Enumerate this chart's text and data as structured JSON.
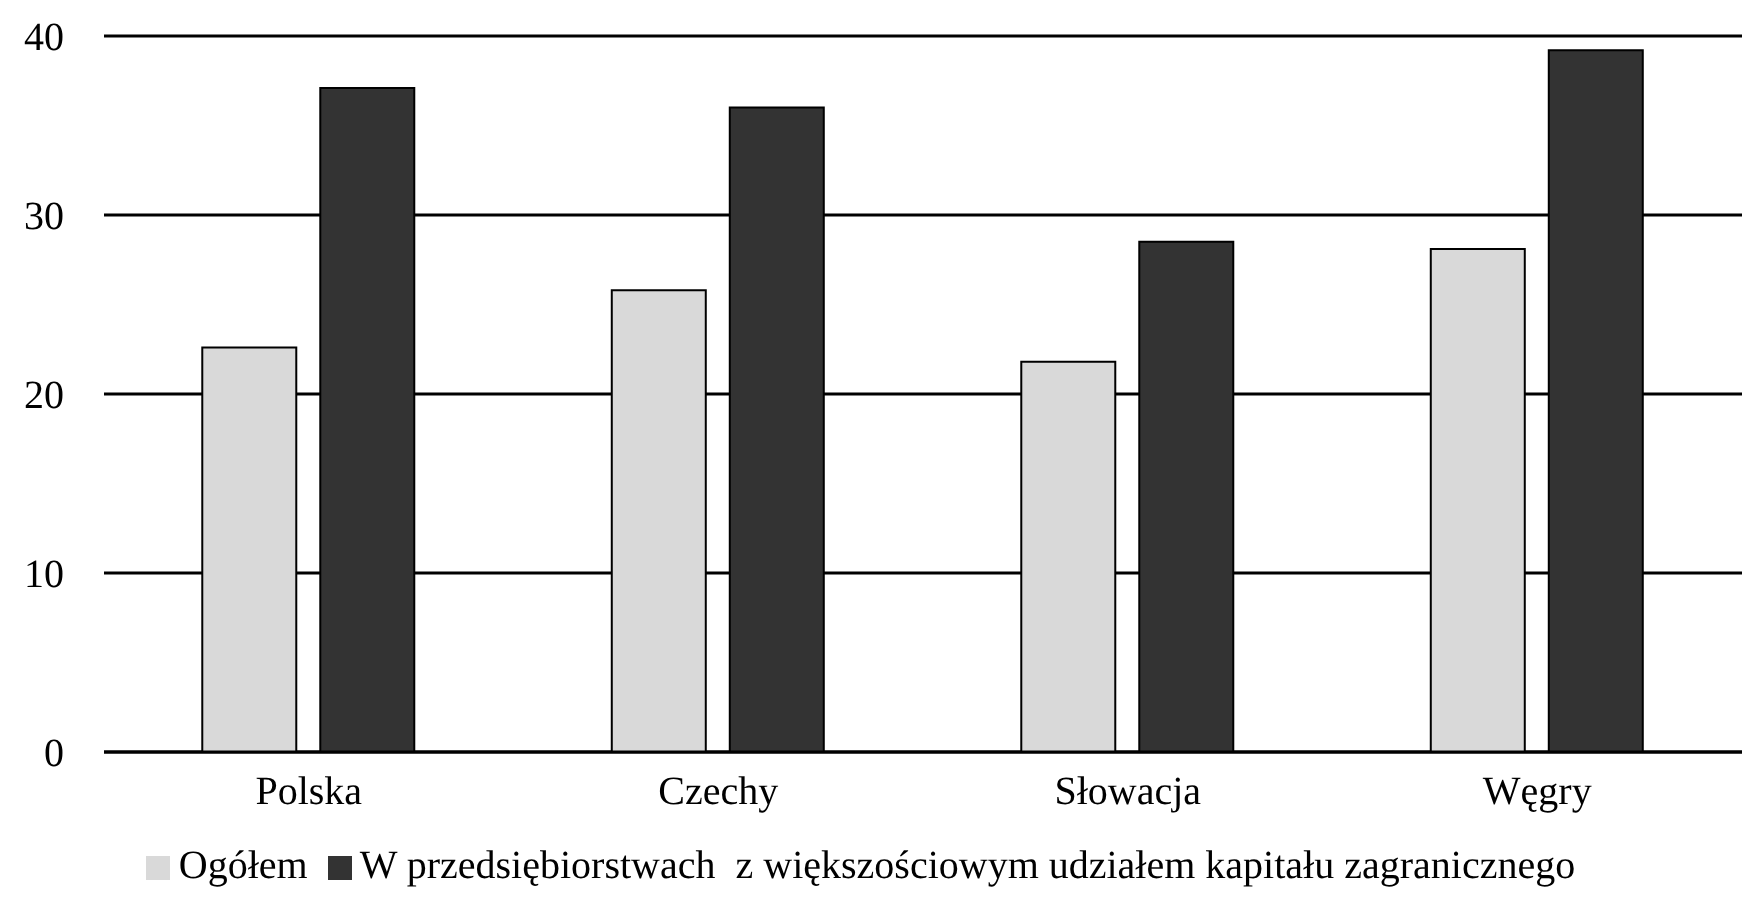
{
  "chart_data": {
    "type": "bar",
    "categories": [
      "Polska",
      "Czechy",
      "Słowacja",
      "Węgry"
    ],
    "series": [
      {
        "name": "Ogółem",
        "color": "#d9d9d9",
        "values": [
          22.6,
          25.8,
          21.8,
          28.1
        ]
      },
      {
        "name": "W przedsiębiorstwach  z większościowym udziałem kapitału zagranicznego",
        "color": "#333333",
        "values": [
          37.1,
          36.0,
          28.5,
          39.2
        ]
      }
    ],
    "ylim": [
      0,
      40
    ],
    "yticks": [
      0,
      10,
      20,
      30,
      40
    ],
    "grid": "y",
    "legend": "bottom"
  }
}
